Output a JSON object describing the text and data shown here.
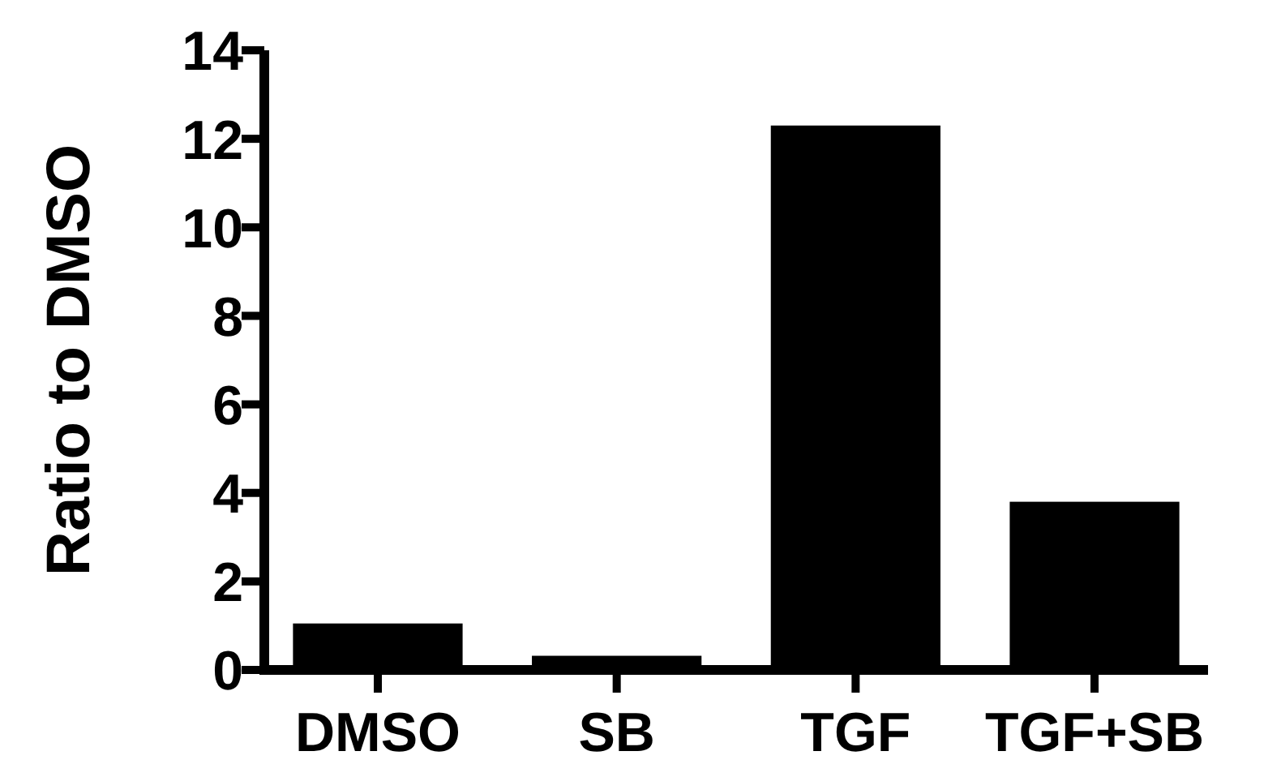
{
  "chart_data": {
    "type": "bar",
    "ylabel": "Ratio to DMSO",
    "categories": [
      "DMSO",
      "SB",
      "TGF",
      "TGF+SB"
    ],
    "values": [
      1.05,
      0.32,
      12.3,
      3.8
    ],
    "color": "#000000",
    "ylim": [
      0,
      14
    ],
    "yticks": [
      0,
      2,
      4,
      6,
      8,
      10,
      12,
      14
    ],
    "grid": false
  }
}
